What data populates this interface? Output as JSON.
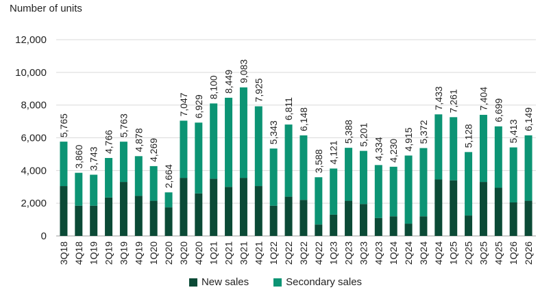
{
  "chart_data": {
    "type": "bar",
    "stacked": true,
    "title": "",
    "ylabel": "Number of units",
    "xlabel": "",
    "ylim": [
      0,
      12000
    ],
    "yticks": [
      "0",
      "2,000",
      "4,000",
      "6,000",
      "8,000",
      "10,000",
      "12,000"
    ],
    "grid": true,
    "legend_position": "bottom",
    "categories": [
      "3Q18",
      "4Q18",
      "1Q19",
      "2Q19",
      "3Q19",
      "4Q19",
      "1Q20",
      "2Q20",
      "3Q20",
      "4Q20",
      "1Q21",
      "2Q21",
      "3Q21",
      "4Q21",
      "1Q22",
      "2Q22",
      "3Q22",
      "4Q22",
      "1Q23",
      "2Q23",
      "3Q23",
      "4Q23",
      "1Q24",
      "2Q24",
      "3Q24",
      "4Q24",
      "1Q25",
      "2Q25",
      "3Q25",
      "4Q25",
      "1Q26",
      "2Q26"
    ],
    "series": [
      {
        "name": "New sales",
        "color": "#0b4a36",
        "values": [
          3050,
          1850,
          1850,
          2350,
          3300,
          2450,
          2150,
          1750,
          3550,
          2600,
          3500,
          3000,
          3550,
          3050,
          1850,
          2400,
          2200,
          700,
          1300,
          2150,
          1950,
          1100,
          1200,
          750,
          1200,
          3450,
          3400,
          1250,
          3300,
          2950,
          2050,
          2150
        ]
      },
      {
        "name": "Secondary sales",
        "color": "#0c9474",
        "values": [
          2715,
          2010,
          1893,
          2416,
          2463,
          2428,
          2119,
          914,
          3497,
          4329,
          4600,
          5449,
          5533,
          4875,
          3493,
          4411,
          3948,
          2888,
          2821,
          3238,
          3251,
          3234,
          3030,
          4165,
          4172,
          3983,
          3861,
          3878,
          4104,
          3749,
          3363,
          3999
        ]
      }
    ],
    "totals": [
      "5,765",
      "3,860",
      "3,743",
      "4,766",
      "5,763",
      "4,878",
      "4,269",
      "2,664",
      "7,047",
      "6,929",
      "8,100",
      "8,449",
      "9,083",
      "7,925",
      "5,343",
      "6,811",
      "6,148",
      "3,588",
      "4,121",
      "5,388",
      "5,201",
      "4,334",
      "4,230",
      "4,915",
      "5,372",
      "7,433",
      "7,261",
      "5,128",
      "7,404",
      "6,699",
      "5,413",
      "6,149"
    ],
    "total_values": [
      5765,
      3860,
      3743,
      4766,
      5763,
      4878,
      4269,
      2664,
      7047,
      6929,
      8100,
      8449,
      9083,
      7925,
      5343,
      6811,
      6148,
      3588,
      4121,
      5388,
      5201,
      4334,
      4230,
      4915,
      5372,
      7433,
      7261,
      5128,
      7404,
      6699,
      5413,
      6149
    ],
    "colors": {
      "grid": "#d9d9d9",
      "axis": "#999999",
      "text": "#222222"
    }
  }
}
